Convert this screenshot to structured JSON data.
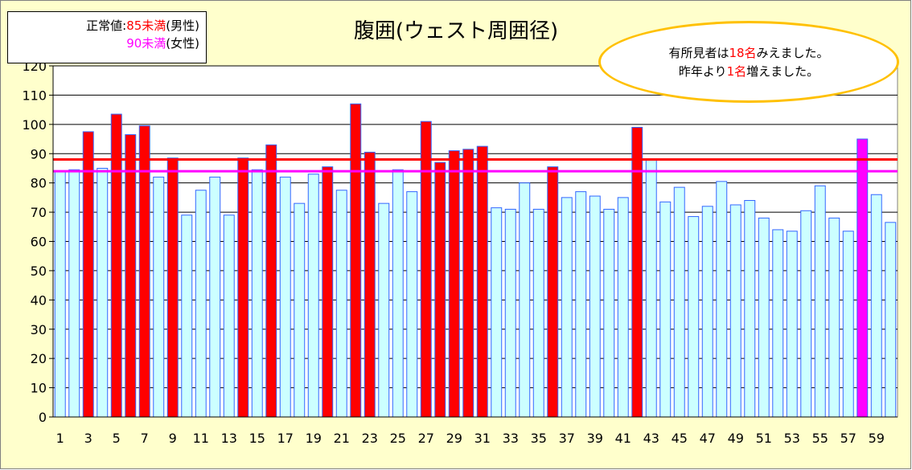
{
  "legend": {
    "prefix": "正常値:",
    "male_value": "85未満",
    "male_suffix": "(男性)",
    "female_value": "90未満",
    "female_suffix": "(女性)"
  },
  "note": {
    "line1_a": "有所見者は",
    "line1_num": "18名",
    "line1_b": "みえました。",
    "line2_a": "昨年より",
    "line2_num": "1名",
    "line2_b": "増えました。"
  },
  "colors": {
    "normal": "#ccffff",
    "over": "#ff0000",
    "over_female": "#ff00ff",
    "bar_border": "#3366ff",
    "male_line": "#ff0000",
    "female_line": "#ff00ff",
    "background": "#ffffcc",
    "ellipse_border": "#ffc000"
  },
  "chart_data": {
    "type": "bar",
    "title": "腹囲(ウェスト周囲径)",
    "xlabel": "",
    "ylabel": "",
    "ylim": [
      0,
      120
    ],
    "y_ticks": [
      0,
      10,
      20,
      30,
      40,
      50,
      60,
      70,
      80,
      90,
      100,
      110,
      120
    ],
    "x_tick_labels": [
      "1",
      "3",
      "5",
      "7",
      "9",
      "11",
      "13",
      "15",
      "17",
      "19",
      "21",
      "23",
      "25",
      "27",
      "29",
      "31",
      "33",
      "35",
      "37",
      "39",
      "41",
      "43",
      "45",
      "47",
      "49",
      "51",
      "53",
      "55",
      "57",
      "59"
    ],
    "grid": true,
    "categories": [
      1,
      2,
      3,
      4,
      5,
      6,
      7,
      8,
      9,
      10,
      11,
      12,
      13,
      14,
      15,
      16,
      17,
      18,
      19,
      20,
      21,
      22,
      23,
      24,
      25,
      26,
      27,
      28,
      29,
      30,
      31,
      32,
      33,
      34,
      35,
      36,
      37,
      38,
      39,
      40,
      41,
      42,
      43,
      44,
      45,
      46,
      47,
      48,
      49,
      50,
      51,
      52,
      53,
      54,
      55,
      56,
      57,
      58,
      59,
      60
    ],
    "values": [
      84,
      84.5,
      97.5,
      85,
      103.5,
      96.5,
      99.5,
      82,
      88.5,
      69,
      77.5,
      82,
      69,
      88.5,
      84.5,
      93,
      82,
      73,
      83,
      85.5,
      77.5,
      107,
      90.5,
      73,
      84.5,
      77,
      101,
      87,
      91,
      91.5,
      92.5,
      71.5,
      71,
      80,
      71,
      85.5,
      75,
      77,
      75.5,
      71,
      75,
      99,
      88,
      73.5,
      78.5,
      68.5,
      72,
      80.5,
      72.5,
      74,
      68,
      64,
      63.5,
      70.5,
      79,
      68,
      63.5,
      95,
      76,
      66.5
    ],
    "over_flags": [
      0,
      0,
      1,
      0,
      1,
      1,
      1,
      0,
      1,
      0,
      0,
      0,
      0,
      1,
      0,
      1,
      0,
      0,
      0,
      1,
      0,
      1,
      1,
      0,
      0,
      0,
      1,
      1,
      1,
      1,
      1,
      0,
      0,
      0,
      0,
      1,
      0,
      0,
      0,
      0,
      0,
      1,
      0,
      0,
      0,
      0,
      0,
      0,
      0,
      0,
      0,
      0,
      0,
      0,
      0,
      0,
      0,
      2,
      0,
      0
    ],
    "reference_lines": [
      {
        "value": 88,
        "color": "#ff0000"
      },
      {
        "value": 84,
        "color": "#ff00ff"
      }
    ]
  }
}
